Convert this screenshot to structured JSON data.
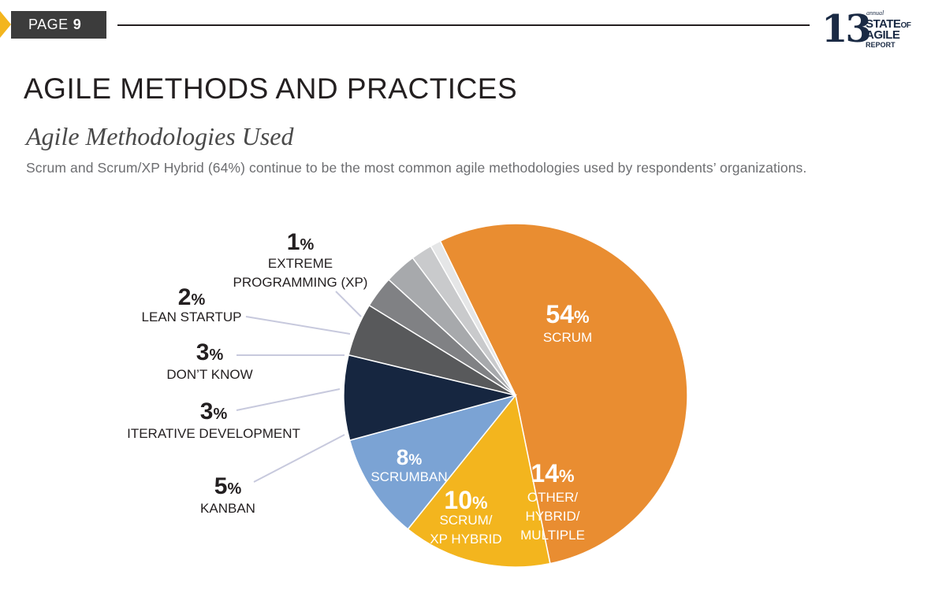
{
  "header": {
    "page_label": "PAGE",
    "page_number": "9",
    "logo": {
      "number": "13",
      "superscript": "th",
      "annual": "annual",
      "line1": "STATE",
      "line1_suffix": "OF",
      "line2": "AGILE",
      "line3": "REPORT"
    }
  },
  "section_title": "AGILE METHODS AND PRACTICES",
  "subtitle": "Agile Methodologies Used",
  "description": "Scrum and Scrum/XP Hybrid (64%) continue to be the most common agile methodologies used by respondents’ organizations.",
  "colors": {
    "scrum": "#e98d31",
    "other": "#f3b51e",
    "scrum_xp": "#7ba3d4",
    "scrumban": "#162640",
    "kanban": "#58595b",
    "iterative": "#808184",
    "dont_know": "#a7a9ac",
    "lean_startup": "#c9cacc",
    "xp": "#e5e6e7"
  },
  "chart_data": {
    "type": "pie",
    "title": "",
    "start_angle_deg": 334,
    "slices": [
      {
        "label": "SCRUM",
        "value": 54,
        "value_text": "54",
        "pct_sign": "%",
        "lines": [
          "SCRUM"
        ],
        "color": "#e98d31",
        "label_pos": "inside"
      },
      {
        "label": "OTHER/ HYBRID/ MULTIPLE",
        "value": 14,
        "value_text": "14",
        "pct_sign": "%",
        "lines": [
          "OTHER/",
          "HYBRID/",
          "MULTIPLE"
        ],
        "color": "#f3b51e",
        "label_pos": "inside"
      },
      {
        "label": "SCRUM/ XP HYBRID",
        "value": 10,
        "value_text": "10",
        "pct_sign": "%",
        "lines": [
          "SCRUM/",
          "XP HYBRID"
        ],
        "color": "#7ba3d4",
        "label_pos": "inside"
      },
      {
        "label": "SCRUMBAN",
        "value": 8,
        "value_text": "8",
        "pct_sign": "%",
        "lines": [
          "SCRUMBAN"
        ],
        "color": "#162640",
        "label_pos": "inside"
      },
      {
        "label": "KANBAN",
        "value": 5,
        "value_text": "5",
        "pct_sign": "%",
        "lines": [
          "KANBAN"
        ],
        "color": "#58595b",
        "label_pos": "outside"
      },
      {
        "label": "ITERATIVE DEVELOPMENT",
        "value": 3,
        "value_text": "3",
        "pct_sign": "%",
        "lines": [
          "ITERATIVE DEVELOPMENT"
        ],
        "color": "#808184",
        "label_pos": "outside"
      },
      {
        "label": "DON’T KNOW",
        "value": 3,
        "value_text": "3",
        "pct_sign": "%",
        "lines": [
          "DON’T KNOW"
        ],
        "color": "#a7a9ac",
        "label_pos": "outside"
      },
      {
        "label": "LEAN STARTUP",
        "value": 2,
        "value_text": "2",
        "pct_sign": "%",
        "lines": [
          "LEAN STARTUP"
        ],
        "color": "#c9cacc",
        "label_pos": "outside"
      },
      {
        "label": "EXTREME PROGRAMMING (XP)",
        "value": 1,
        "value_text": "1",
        "pct_sign": "%",
        "lines": [
          "EXTREME",
          "PROGRAMMING (XP)"
        ],
        "color": "#e5e6e7",
        "label_pos": "outside"
      }
    ]
  }
}
